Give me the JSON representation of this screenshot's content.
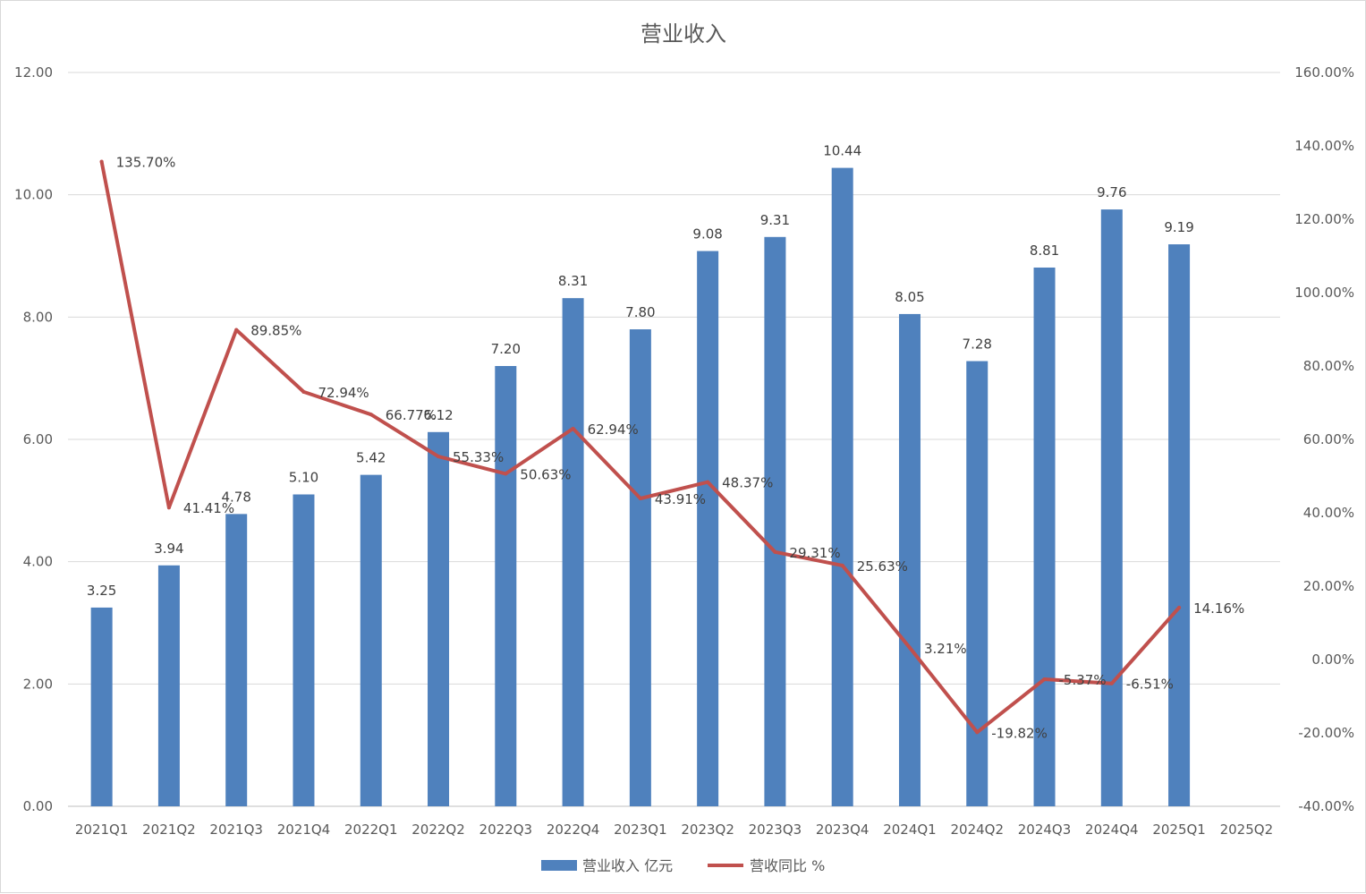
{
  "chart_data": {
    "type": "bar",
    "title": "营业收入",
    "categories": [
      "2021Q1",
      "2021Q2",
      "2021Q3",
      "2021Q4",
      "2022Q1",
      "2022Q2",
      "2022Q3",
      "2022Q4",
      "2023Q1",
      "2023Q2",
      "2023Q3",
      "2023Q4",
      "2024Q1",
      "2024Q2",
      "2024Q3",
      "2024Q4",
      "2025Q1",
      "2025Q2"
    ],
    "series": [
      {
        "name": "营业收入 亿元",
        "type": "bar",
        "axis": "left",
        "color": "#4f81bd",
        "values": [
          3.25,
          3.94,
          4.78,
          5.1,
          5.42,
          6.12,
          7.2,
          8.31,
          7.8,
          9.08,
          9.31,
          10.44,
          8.05,
          7.28,
          8.81,
          9.76,
          9.19,
          null
        ],
        "labels": [
          "3.25",
          "3.94",
          "4.78",
          "5.10",
          "5.42",
          "6.12",
          "7.20",
          "8.31",
          "7.80",
          "9.08",
          "9.31",
          "10.44",
          "8.05",
          "7.28",
          "8.81",
          "9.76",
          "9.19",
          ""
        ]
      },
      {
        "name": "营收同比 %",
        "type": "line",
        "axis": "right",
        "color": "#c0504d",
        "values": [
          135.7,
          41.41,
          89.85,
          72.94,
          66.77,
          55.33,
          50.63,
          62.94,
          43.91,
          48.37,
          29.31,
          25.63,
          3.21,
          -19.82,
          -5.37,
          -6.51,
          14.16,
          null
        ],
        "labels": [
          "135.70%",
          "41.41%",
          "89.85%",
          "72.94%",
          "66.77%",
          "55.33%",
          "50.63%",
          "62.94%",
          "43.91%",
          "48.37%",
          "29.31%",
          "25.63%",
          "3.21%",
          "-19.82%",
          "-5.37%",
          "-6.51%",
          "14.16%",
          ""
        ]
      }
    ],
    "y_left": {
      "min": 0,
      "max": 12,
      "ticks": [
        "0.00",
        "2.00",
        "4.00",
        "6.00",
        "8.00",
        "10.00",
        "12.00"
      ]
    },
    "y_right": {
      "min": -40,
      "max": 160,
      "ticks": [
        "-40.00%",
        "-20.00%",
        "0.00%",
        "20.00%",
        "40.00%",
        "60.00%",
        "80.00%",
        "100.00%",
        "120.00%",
        "140.00%",
        "160.00%"
      ]
    },
    "grid": true,
    "legend_position": "bottom"
  }
}
